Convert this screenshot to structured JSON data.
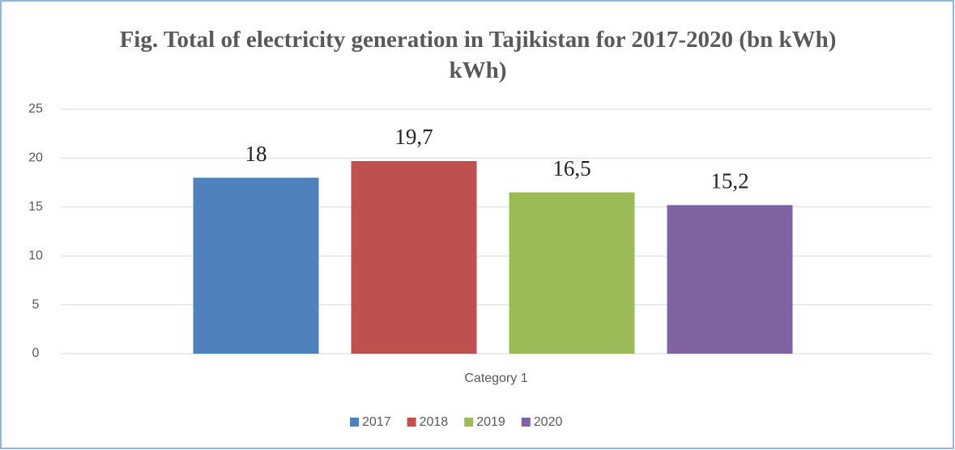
{
  "chart_data": {
    "type": "bar",
    "title": "Fig. Total of electricity generation in Tajikistan for 2017-2020 (bn kWh) kWh)",
    "categories": [
      "Category 1"
    ],
    "series": [
      {
        "name": "2017",
        "color": "#4f81bd",
        "values": [
          18
        ],
        "value_labels": [
          "18"
        ]
      },
      {
        "name": "2018",
        "color": "#c0504d",
        "values": [
          19.7
        ],
        "value_labels": [
          "19,7"
        ]
      },
      {
        "name": "2019",
        "color": "#9bbb59",
        "values": [
          16.5
        ],
        "value_labels": [
          "16,5"
        ]
      },
      {
        "name": "2020",
        "color": "#8064a2",
        "values": [
          15.2
        ],
        "value_labels": [
          "15,2"
        ]
      }
    ],
    "ylim": [
      0,
      25
    ],
    "yticks": [
      0,
      5,
      10,
      15,
      20,
      25
    ],
    "grid": true,
    "legend": "bottom"
  }
}
